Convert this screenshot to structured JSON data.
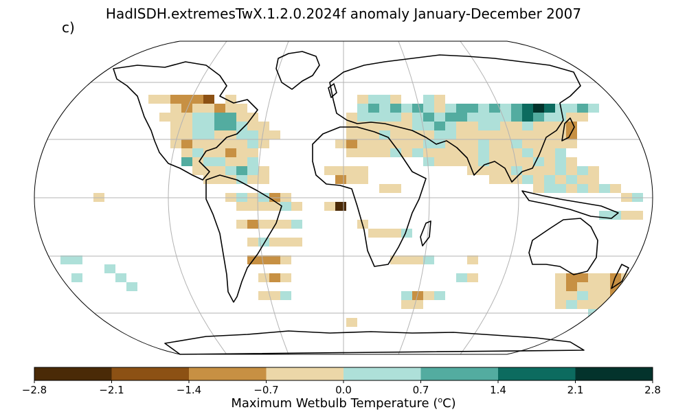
{
  "title": "HadISDH.extremesTwX.1.2.0.2024f anomaly January-December 2007",
  "panel_letter": "c)",
  "colorbar": {
    "label": "Maximum Wetbulb Temperature (",
    "unit_sup": "o",
    "unit_tail": "C)",
    "ticks": [
      "−2.8",
      "−2.1",
      "−1.4",
      "−0.7",
      "0.0",
      "0.7",
      "1.4",
      "2.1",
      "2.8"
    ],
    "colors": [
      "#4a2a07",
      "#8c5114",
      "#c79043",
      "#ecd7a8",
      "#aee0d9",
      "#53aca0",
      "#0c6b5f",
      "#03332c"
    ]
  },
  "colors": {
    "graticule": "#b3b3b3",
    "coast": "#000000"
  }
}
